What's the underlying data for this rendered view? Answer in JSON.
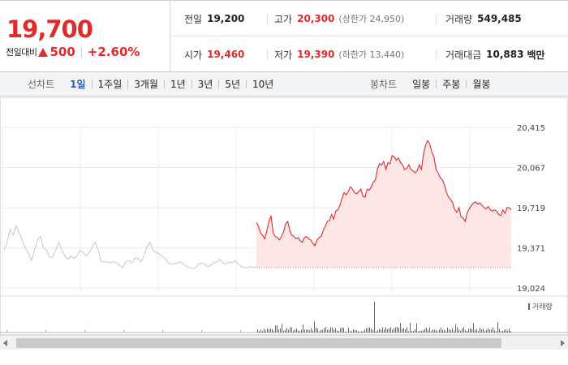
{
  "summary": {
    "price": "19,700",
    "change_label": "전일대비",
    "change_amount": "500",
    "change_percent": "+2.60%",
    "prev_close_label": "전일",
    "prev_close": "19,200",
    "high_label": "고가",
    "high": "20,300",
    "upper_limit_text": "(상한가 24,950)",
    "volume_label": "거래량",
    "volume": "549,485",
    "open_label": "시가",
    "open": "19,460",
    "low_label": "저가",
    "low": "19,390",
    "lower_limit_text": "(하한가 13,440)",
    "turnover_label": "거래대금",
    "turnover": "10,883",
    "turnover_unit": "백만"
  },
  "toolbar": {
    "line_label": "선차트",
    "line_periods": [
      "1일",
      "1주일",
      "3개월",
      "1년",
      "3년",
      "5년",
      "10년"
    ],
    "active_period": 0,
    "candle_label": "봉차트",
    "candle_periods": [
      "일봉",
      "주봉",
      "월봉"
    ]
  },
  "colors": {
    "up": "#e12a2a",
    "prev_day_line": "#c8c8c8",
    "area_fill": "#fde6e6",
    "volume_bar": "#6a5aa6",
    "active_tab": "#2a58c9"
  },
  "chart_data": {
    "type": "line",
    "y_ticks": [
      "20,415",
      "20,067",
      "19,719",
      "19,371",
      "19,024"
    ],
    "ylim": [
      19024,
      20415
    ],
    "base_price": 19200,
    "volume_legend": "거래량",
    "series": [
      {
        "values": [
          19350,
          19420,
          19530,
          19480,
          19560,
          19500,
          19430,
          19370,
          19330,
          19260,
          19350,
          19440,
          19470,
          19370,
          19350,
          19290,
          19290,
          19350,
          19420,
          19350,
          19300,
          19270,
          19300,
          19280,
          19300,
          19350,
          19330,
          19300,
          19330,
          19380,
          19420,
          19350,
          19250,
          19250,
          19250,
          19240,
          19250,
          19240,
          19220,
          19200,
          19250,
          19260,
          19240,
          19280,
          19280,
          19250,
          19300,
          19380,
          19420,
          19350,
          19330,
          19320,
          19300,
          19280,
          19240,
          19230,
          19230,
          19240,
          19250,
          19230,
          19210,
          19200,
          19190,
          19200,
          19230,
          19240,
          19230,
          19210,
          19220,
          19240,
          19250,
          19270,
          19240,
          19230,
          19250,
          19240,
          19260,
          19230,
          19210,
          19200,
          19200,
          19210,
          19200,
          19210
        ]
      },
      {
        "values": [
          19590,
          19560,
          19500,
          19480,
          19450,
          19520,
          19600,
          19650,
          19500,
          19470,
          19460,
          19440,
          19470,
          19510,
          19580,
          19600,
          19520,
          19480,
          19470,
          19450,
          19460,
          19430,
          19420,
          19460,
          19470,
          19450,
          19440,
          19410,
          19390,
          19440,
          19460,
          19470,
          19520,
          19560,
          19600,
          19610,
          19660,
          19620,
          19690,
          19700,
          19740,
          19800,
          19850,
          19830,
          19860,
          19900,
          19880,
          19850,
          19840,
          19860,
          19880,
          19820,
          19810,
          19880,
          19870,
          19900,
          19940,
          19960,
          20060,
          20100,
          20090,
          20120,
          20050,
          20110,
          20100,
          20170,
          20160,
          20130,
          20150,
          20110,
          20090,
          20050,
          20060,
          20090,
          20050,
          20040,
          20020,
          20040,
          20090,
          20050,
          20180,
          20260,
          20300,
          20270,
          20200,
          20160,
          20050,
          20020,
          19980,
          19960,
          19920,
          19850,
          19810,
          19790,
          19760,
          19700,
          19680,
          19720,
          19640,
          19630,
          19600,
          19680,
          19710,
          19740,
          19760,
          19770,
          19750,
          19760,
          19740,
          19720,
          19710,
          19730,
          19700,
          19690,
          19700,
          19690,
          19660,
          19650,
          19700,
          19670,
          19720,
          19720,
          19700
        ]
      }
    ]
  }
}
